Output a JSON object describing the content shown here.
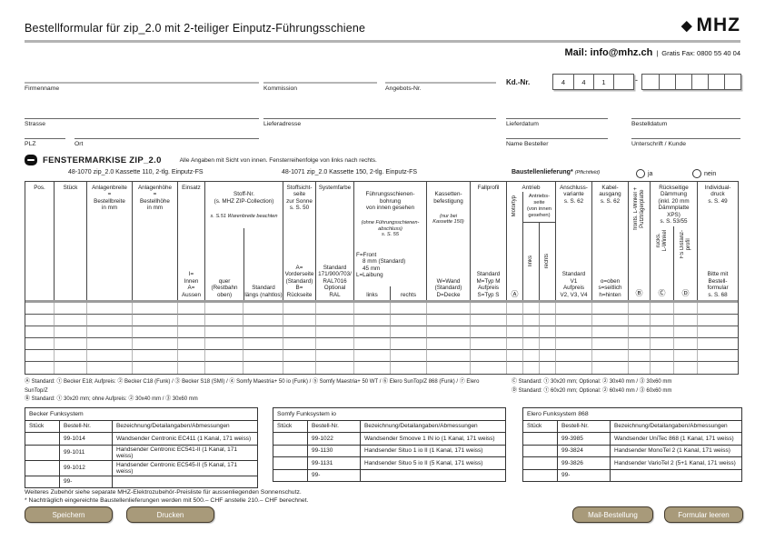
{
  "colors": {
    "button_bg": "#a89a7a",
    "rule_gray": "#b3b3b3",
    "header_separator": "#9c9c9c"
  },
  "header": {
    "title": "Bestellformular für zip_2.0 mit 2-teiliger Einputz-Führungsschiene",
    "logo_mark": "◆",
    "brand": "MHZ",
    "mail": "Mail: info@mhz.ch",
    "sep": "|",
    "fax": "Gratis Fax: 0800 55 40 04"
  },
  "contact": {
    "firmenname": "Firmenname",
    "kommission": "Kommission",
    "angebots_nr": "Angebots-Nr.",
    "kd_nr": "Kd.-Nr.",
    "kd_digits": [
      "4",
      "4",
      "1",
      ""
    ],
    "kd_dash": "-",
    "strasse": "Strasse",
    "lieferadresse": "Lieferadresse",
    "lieferdatum": "Lieferdatum",
    "bestelldatum": "Bestelldatum",
    "plz": "PLZ",
    "ort": "Ort",
    "name_besteller": "Name Besteller",
    "unterschrift": "Unterschrift / Kunde"
  },
  "section": {
    "title": "FENSTERMARKISE ZIP_2.0",
    "subtitle": "Alle Angaben mit Sicht von innen. Fensterreihenfolge von links nach rechts.",
    "product1": "48-1070 zip_2.0 Kassette 110, 2-tlg. Einputz-FS",
    "product2": "48-1071 zip_2.0 Kassette 150, 2-tlg. Einputz-FS",
    "baustellen": "Baustellenlieferung*",
    "baustellen_note": "(Pflichtfeld)",
    "ja": "ja",
    "nein": "nein"
  },
  "table": {
    "empty_rows": 6,
    "leaf_columns": 22,
    "cols": {
      "pos": "Pos.",
      "stueck": "Stück",
      "breite": "Anlagenbreite\n=\nBestellbreite\nin mm",
      "hoehe": "Anlagenhöhe\n=\nBestellhöhe\nin mm",
      "einsatz_t": "Einsatz",
      "einsatz_b": "I=\nInnen\nA=\nAussen",
      "stoff_t": "Stoff-Nr.\n(s. MHZ ZIP-Collection)",
      "stoff_n": "s. S.51 Warenbreite beachten",
      "stoff_l": "quer\n(Restbahn oben)",
      "stoff_r": "Standard\nlängs (nahtlos)",
      "sicht_t": "Stoffsicht-\nseite\nzur Sonne\ns. S. 50",
      "sicht_b": "A=\nVorderseite\n(Standard)\nB=\nRückseite",
      "farbe_t": "Systemfarbe",
      "farbe_b": "Standard\n171/900/703/\nRAL7016\nOptional\nRAL",
      "bohr_t": "Führungsschienen-\nbohrung\nvon innen gesehen",
      "bohr_n": "(ohne Führungsschienen-\nabschluss)\ns. S. 55",
      "bohr_m": "F=Front\n    8 mm (Standard)\n    45 mm\nL=Laibung",
      "bohr_l": "links",
      "bohr_r": "rechts",
      "kass_t": "Kassetten-\nbefestigung",
      "kass_n": "(nur bei\nKassette 150)",
      "kass_b": "W=Wand\n(Standard)\nD=Decke",
      "fall_t": "Fallprofil",
      "fall_b": "Standard\nM=Typ M\nAufpreis\nS=Typ S",
      "antrieb_t": "Antrieb",
      "motortyp": "Motortyp",
      "motortyp_mark": "Ⓐ",
      "aseite": "Antriebs-\nseite\n(von innen\ngesehen)",
      "a_links": "links",
      "a_rechts": "rechts",
      "anschl_t": "Anschluss-\nvariante\ns. S. 62",
      "anschl_b": "Standard\nV1\nAufpreis\nV2, V3, V4",
      "kabel_t": "Kabel-\nausgang\ns. S. 62",
      "kabel_b": "o=oben\ns=seitlich\nh=hinten",
      "fwinkel": "fronts. L-Winkel +\nPutzträgerplatte",
      "fwinkel_mark": "Ⓑ",
      "daemm_t": "Rückseitige\nDämmung\n(inkl. 20 mm\nDämmplatte XPS)\ns. S. 53/55",
      "daemm_l": "rücks.\nL-Winkel",
      "daemm_l_mark": "Ⓒ",
      "daemm_r": "FS Distanz-\nprofil",
      "daemm_r_mark": "Ⓓ",
      "indiv_t": "Individual-\ndruck\ns. S. 49",
      "indiv_b": "Bitte mit\nBestell-\nformular\ns. S. 68"
    }
  },
  "footnotes": {
    "a": "Ⓐ Standard: ① Becker E18; Aufpreis: ② Becker C18 (Funk) / ③ Becker S18 (SMI) / ④ Somfy Maestria+ 50 io (Funk) / ⑤ Somfy Maestria+ 50 WT / ⑥ Elero SunTop/Z 868 (Funk) / ⑦ Elero SunTop/Z",
    "b": "Ⓑ Standard: ① 30x20 mm; ohne Aufpreis: ② 30x40 mm / ③ 30x60 mm",
    "c": "Ⓒ Standard: ① 30x20 mm; Optional: ② 30x40 mm / ③ 30x60 mm",
    "d": "Ⓓ Standard: ① 60x20 mm; Optional: ② 60x40 mm / ③ 60x60 mm"
  },
  "acc_headers": [
    "Stück",
    "Bestell-Nr.",
    "Bezeichnung/Detailangaben/Abmessungen"
  ],
  "accessories": [
    {
      "title": "Becker Funksystem",
      "rows": [
        [
          "99-1014",
          "Wandsender Centronic EC411 (1 Kanal, 171 weiss)"
        ],
        [
          "99-1011",
          "Handsender Centronic EC541-II (1 Kanal, 171 weiss)"
        ],
        [
          "99-1012",
          "Handsender Centronic EC545-II (5 Kanal, 171 weiss)"
        ],
        [
          "99-",
          ""
        ]
      ]
    },
    {
      "title": "Somfy Funksystem io",
      "rows": [
        [
          "99-1022",
          "Wandsender Smoove 1 IN io (1 Kanal, 171 weiss)"
        ],
        [
          "99-1130",
          "Handsender Situo 1 io II (1 Kanal, 171 weiss)"
        ],
        [
          "99-1131",
          "Handsender Situo 5 io II (5 Kanal, 171 weiss)"
        ],
        [
          "99-",
          ""
        ]
      ]
    },
    {
      "title": "Elero Funksystem 868",
      "rows": [
        [
          "99-3985",
          "Wandsender UniTec 868 (1 Kanal, 171 weiss)"
        ],
        [
          "99-3824",
          "Handsender MonoTel 2 (1 Kanal, 171 weiss)"
        ],
        [
          "99-3826",
          "Handsender VarioTel 2 (5+1 Kanal, 171 weiss)"
        ],
        [
          "99-",
          ""
        ]
      ]
    }
  ],
  "footer": {
    "note1": "Weiteres Zubehör siehe separate MHZ-Elektrozubehör-Preisliste für aussenliegenden Sonnenschutz.",
    "note2": "* Nachträglich eingereichte Baustellenlieferungen werden mit 500.– CHF anstelle 210.– CHF berechnet.",
    "save": "Speichern",
    "print": "Drucken",
    "mail_order": "Mail-Bestellung",
    "clear": "Formular leeren"
  }
}
